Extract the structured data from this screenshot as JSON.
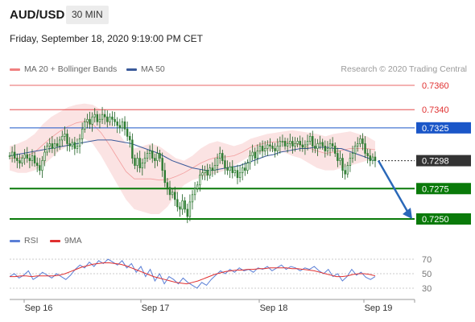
{
  "header": {
    "symbol": "AUD/USD",
    "timeframe": "30 MIN",
    "datetime": "Friday, September 18, 2020 9:19:00 PM CET"
  },
  "legend": {
    "bollinger": "MA 20 + Bollinger Bands",
    "ma50": "MA 50",
    "rsi": "RSI",
    "rsi_ma": "9MA"
  },
  "credit": "Research © 2020 Trading Central",
  "colors": {
    "resistance": "#e03030",
    "pivot": "#1a56c8",
    "support": "#0a7a0a",
    "current": "#333333",
    "bollinger": "#f08080",
    "bollinger_fill": "#fbe0e0",
    "ma50": "#3a5a9a",
    "candle": "#2e7d32",
    "rsi": "#5b7fd6",
    "rsi_ma": "#e03030",
    "arrow": "#2a68b8"
  },
  "chart_data": {
    "type": "candlestick",
    "title": "AUD/USD",
    "timeframe": "30 MIN",
    "x_ticks": [
      "Sep 16",
      "Sep 17",
      "Sep 18",
      "Sep 19"
    ],
    "price_range": [
      0.7245,
      0.7365
    ],
    "levels": [
      {
        "name": "resistance-2",
        "value": 0.736,
        "label": "0.7360",
        "style": "resistance"
      },
      {
        "name": "resistance-1",
        "value": 0.734,
        "label": "0.7340",
        "style": "resistance"
      },
      {
        "name": "pivot",
        "value": 0.7325,
        "label": "0.7325",
        "style": "pivot"
      },
      {
        "name": "current-price",
        "value": 0.7298,
        "label": "0.7298",
        "style": "current"
      },
      {
        "name": "support-1",
        "value": 0.7275,
        "label": "0.7275",
        "style": "support"
      },
      {
        "name": "support-2",
        "value": 0.725,
        "label": "0.7250",
        "style": "support"
      }
    ],
    "close_series": [
      0.7302,
      0.7305,
      0.73,
      0.7298,
      0.7296,
      0.73,
      0.7303,
      0.73,
      0.7298,
      0.7302,
      0.7296,
      0.7294,
      0.729,
      0.7298,
      0.7305,
      0.731,
      0.7312,
      0.7308,
      0.7312,
      0.731,
      0.7315,
      0.7318,
      0.732,
      0.7312,
      0.731,
      0.7313,
      0.7308,
      0.731,
      0.7316,
      0.7324,
      0.733,
      0.7332,
      0.7328,
      0.7334,
      0.7336,
      0.733,
      0.7332,
      0.7336,
      0.7334,
      0.733,
      0.7334,
      0.7332,
      0.733,
      0.7327,
      0.7325,
      0.733,
      0.7324,
      0.7318,
      0.7315,
      0.73,
      0.7294,
      0.73,
      0.7292,
      0.7296,
      0.73,
      0.7304,
      0.7306,
      0.73,
      0.7298,
      0.7304,
      0.73,
      0.729,
      0.728,
      0.7276,
      0.727,
      0.7272,
      0.7266,
      0.726,
      0.7258,
      0.7265,
      0.7258,
      0.7252,
      0.7264,
      0.727,
      0.7275,
      0.7278,
      0.7286,
      0.7288,
      0.729,
      0.7286,
      0.7292,
      0.729,
      0.7294,
      0.73,
      0.7304,
      0.7298,
      0.7292,
      0.729,
      0.7293,
      0.7288,
      0.729,
      0.7284,
      0.7288,
      0.7292,
      0.729,
      0.7296,
      0.7302,
      0.7305,
      0.73,
      0.7306,
      0.731,
      0.7306,
      0.7308,
      0.7311,
      0.731,
      0.7308,
      0.7306,
      0.731,
      0.7314,
      0.7314,
      0.731,
      0.7312,
      0.7314,
      0.731,
      0.7312,
      0.7314,
      0.7311,
      0.7309,
      0.7311,
      0.7314,
      0.7318,
      0.731,
      0.7308,
      0.7312,
      0.7313,
      0.731,
      0.7306,
      0.7308,
      0.7312,
      0.731,
      0.7304,
      0.7298,
      0.73,
      0.729,
      0.7287,
      0.7294,
      0.73,
      0.7304,
      0.731,
      0.7312,
      0.7316,
      0.7312,
      0.7304,
      0.7302,
      0.7298,
      0.7301,
      0.7298
    ],
    "ma50_series": [
      0.7302,
      0.7303,
      0.7304,
      0.7305,
      0.7306,
      0.7307,
      0.7308,
      0.7309,
      0.731,
      0.7311,
      0.7312,
      0.7313,
      0.7314,
      0.7315,
      0.7315,
      0.7315,
      0.7314,
      0.7313,
      0.7312,
      0.731,
      0.7308,
      0.7306,
      0.7304,
      0.7301,
      0.7298,
      0.7296,
      0.7294,
      0.7292,
      0.7291,
      0.729,
      0.729,
      0.7291,
      0.7292,
      0.7293,
      0.7294,
      0.7296,
      0.7298,
      0.73,
      0.7302,
      0.7303,
      0.7305,
      0.7306,
      0.7307,
      0.7308,
      0.7308,
      0.7309,
      0.7309,
      0.7309,
      0.7308,
      0.7308,
      0.7306,
      0.7304,
      0.7302,
      0.73,
      0.7298
    ],
    "bb_upper_series": [
      0.731,
      0.7312,
      0.7315,
      0.732,
      0.7328,
      0.7334,
      0.7338,
      0.7342,
      0.7344,
      0.7345,
      0.7344,
      0.734,
      0.7332,
      0.7322,
      0.7312,
      0.7308,
      0.731,
      0.7312,
      0.731,
      0.7305,
      0.73,
      0.7298,
      0.7302,
      0.7308,
      0.7312,
      0.7314,
      0.7312,
      0.731,
      0.7312,
      0.7316,
      0.7318,
      0.732,
      0.7321,
      0.7322,
      0.7323,
      0.7322,
      0.7321,
      0.732,
      0.7318,
      0.732,
      0.7321,
      0.7322,
      0.732,
      0.7318,
      0.7314
    ],
    "bb_lower_series": [
      0.729,
      0.7288,
      0.7288,
      0.729,
      0.7294,
      0.73,
      0.7306,
      0.731,
      0.7314,
      0.7316,
      0.7312,
      0.7302,
      0.729,
      0.7278,
      0.7266,
      0.7258,
      0.7256,
      0.7254,
      0.7254,
      0.726,
      0.727,
      0.7278,
      0.7282,
      0.7284,
      0.7286,
      0.7288,
      0.729,
      0.7294,
      0.7298,
      0.7302,
      0.7304,
      0.7306,
      0.7306,
      0.7305,
      0.7302,
      0.73,
      0.7296,
      0.7292,
      0.729,
      0.729,
      0.7292,
      0.7294,
      0.7296,
      0.7298,
      0.73
    ],
    "forecast": {
      "from": 0.7298,
      "to": 0.725,
      "direction": "down"
    },
    "rsi": {
      "ticks": [
        70,
        50,
        30
      ],
      "range": [
        25,
        75
      ],
      "series": [
        46,
        50,
        44,
        48,
        54,
        42,
        46,
        52,
        48,
        44,
        50,
        46,
        42,
        48,
        56,
        62,
        58,
        66,
        60,
        68,
        64,
        70,
        66,
        62,
        68,
        58,
        64,
        52,
        60,
        46,
        56,
        40,
        50,
        36,
        46,
        42,
        36,
        44,
        38,
        34,
        30,
        38,
        34,
        42,
        48,
        54,
        50,
        56,
        52,
        58,
        54,
        56,
        52,
        58,
        56,
        60,
        54,
        58,
        62,
        56,
        60,
        58,
        54,
        58,
        56,
        60,
        54,
        50,
        56,
        46,
        50,
        40,
        46,
        56,
        48,
        52,
        45,
        42,
        46
      ],
      "ma_series": [
        46,
        46,
        47,
        47,
        46,
        47,
        47,
        47,
        47,
        48,
        50,
        53,
        56,
        59,
        61,
        63,
        64,
        65,
        65,
        64,
        63,
        61,
        58,
        55,
        52,
        49,
        46,
        44,
        42,
        40,
        38,
        37,
        36,
        38,
        40,
        43,
        46,
        49,
        51,
        53,
        54,
        55,
        55,
        56,
        56,
        57,
        57,
        58,
        58,
        58,
        58,
        57,
        57,
        56,
        55,
        54,
        52,
        50,
        48,
        46,
        46,
        47,
        49,
        50,
        50,
        49,
        47
      ]
    }
  }
}
